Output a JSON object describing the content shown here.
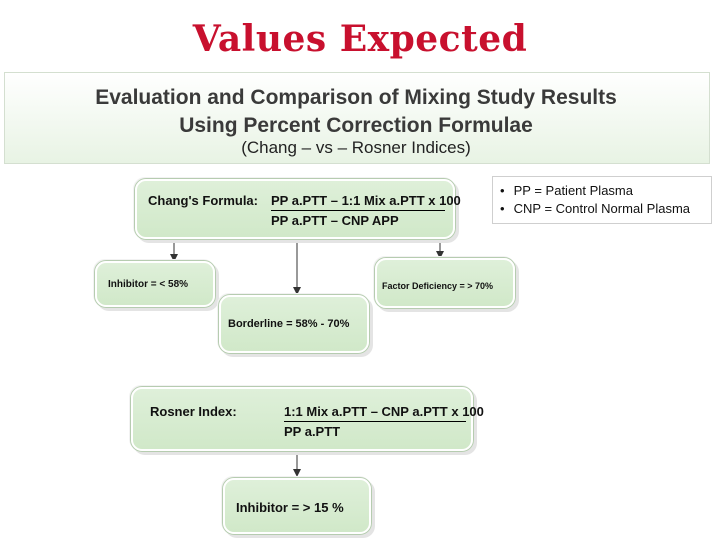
{
  "slide": {
    "title": "Values Expected"
  },
  "header": {
    "line1": "Evaluation and Comparison of Mixing Study Results",
    "line2": "Using Percent Correction Formulae",
    "line3": "(Chang – vs – Rosner Indices)"
  },
  "legend": {
    "items": [
      {
        "bullet": "•",
        "text": "PP = Patient Plasma"
      },
      {
        "bullet": "•",
        "text": "CNP = Control Normal Plasma"
      }
    ]
  },
  "chang": {
    "label": "Chang's Formula:",
    "numerator": "PP a.PTT – 1:1 Mix a.PTT x 100",
    "denominator": "PP a.PTT – CNP APP",
    "inhibitor": "Inhibitor = < 58%",
    "borderline": "Borderline = 58% - 70%",
    "factor_deficiency": "Factor Deficiency = > 70%"
  },
  "rosner": {
    "label": "Rosner Index:",
    "numerator": "1:1 Mix a.PTT – CNP a.PTT x 100",
    "denominator": "PP a.PTT",
    "inhibitor": "Inhibitor = > 15 %"
  },
  "colors": {
    "title_red": "#c8102e",
    "box_green": "#d6ecd0",
    "heading_gray": "#3a3a3a"
  }
}
